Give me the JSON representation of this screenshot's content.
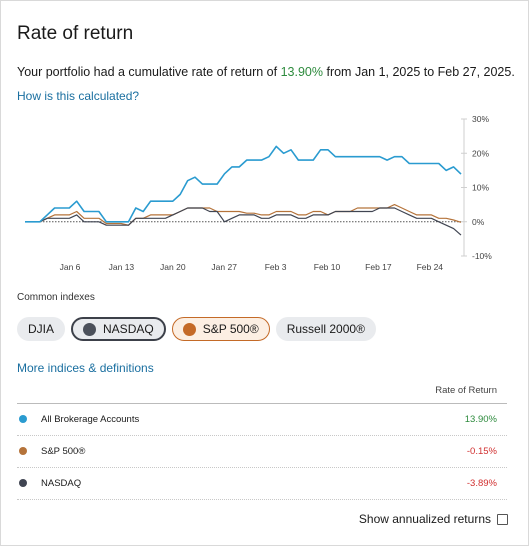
{
  "title": "Rate of return",
  "summary": {
    "prefix": "Your portfolio had a cumulative rate of return of ",
    "rate": "13.90%",
    "suffix": " from Jan 1, 2025 to Feb 27, 2025."
  },
  "how_link": "How is this calculated?",
  "colors": {
    "portfolio": "#2a9bd0",
    "sp500": "#b5733a",
    "nasdaq": "#404552",
    "positive": "#2e8b3e",
    "negative": "#d12f2f",
    "link": "#1a6fa0"
  },
  "chart_data": {
    "type": "line",
    "x_ticks": [
      "Jan 6",
      "Jan 13",
      "Jan 20",
      "Jan 27",
      "Feb 3",
      "Feb 10",
      "Feb 17",
      "Feb 24"
    ],
    "y_ticks": [
      "30%",
      "20%",
      "10%",
      "0%",
      "-10%"
    ],
    "ylim": [
      -10,
      30
    ],
    "zero_line": "dotted",
    "series": [
      {
        "name": "All Brokerage Accounts",
        "color": "#2a9bd0",
        "values": [
          0,
          0,
          0,
          2,
          4,
          4,
          4,
          6,
          3,
          3,
          3,
          0,
          0,
          0,
          0,
          4,
          3,
          6,
          6,
          6,
          6,
          8,
          12,
          13,
          11,
          11,
          11,
          14,
          16,
          16,
          18,
          18,
          18,
          19,
          22,
          20,
          21,
          18,
          18,
          18,
          21,
          21,
          19,
          19,
          19,
          19,
          19,
          19,
          19,
          18,
          19,
          19,
          17,
          17,
          17,
          17,
          17,
          15,
          16,
          13.9
        ]
      },
      {
        "name": "S&P 500®",
        "color": "#b5733a",
        "values": [
          0,
          0,
          0,
          1,
          2,
          2,
          2,
          3,
          1,
          1,
          1,
          -0.5,
          -0.5,
          -0.5,
          -1,
          1,
          1,
          2,
          2,
          2,
          2,
          3,
          4,
          4,
          4,
          4,
          3,
          3,
          3,
          3,
          2.5,
          2.5,
          2,
          2,
          3,
          3,
          3,
          2,
          2,
          3,
          3,
          2,
          3,
          3,
          3,
          4,
          4,
          4,
          4,
          4,
          5,
          4,
          3,
          2,
          2,
          2,
          1,
          1,
          0.5,
          -0.15
        ]
      },
      {
        "name": "NASDAQ",
        "color": "#404552",
        "values": [
          0,
          0,
          0,
          1,
          1,
          1,
          1,
          2,
          0,
          0,
          0,
          -1,
          -1,
          -1,
          -1,
          1,
          1,
          1,
          1,
          1,
          2,
          3,
          4,
          4,
          4,
          3,
          3,
          0,
          1,
          2,
          2,
          2,
          1,
          1,
          2,
          2,
          2,
          1,
          1,
          2,
          2,
          2,
          3,
          3,
          3,
          3,
          3,
          3,
          4,
          4,
          4,
          3,
          2,
          1,
          1,
          1,
          0,
          -1,
          -2,
          -3.89
        ]
      }
    ]
  },
  "common_indexes": {
    "label": "Common indexes",
    "pills": [
      "DJIA",
      "NASDAQ",
      "S&P 500®",
      "Russell 2000®"
    ]
  },
  "more_link": "More indices & definitions",
  "table": {
    "header": "Rate of Return",
    "rows": [
      {
        "name": "All Brokerage Accounts",
        "value": "13.90%",
        "color": "#2a9bd0"
      },
      {
        "name": "S&P 500®",
        "value": "-0.15%",
        "color": "#b5733a"
      },
      {
        "name": "NASDAQ",
        "value": "-3.89%",
        "color": "#404552"
      }
    ]
  },
  "annualized_label": "Show annualized returns"
}
